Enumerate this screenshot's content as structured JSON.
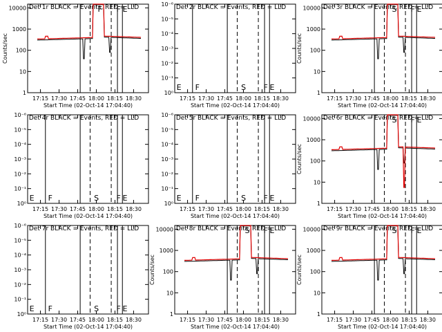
{
  "colors": {
    "events": "#000000",
    "lld": "#e00000",
    "background": "#ffffff"
  },
  "chart_data": [
    {
      "type": "line",
      "title": "Det 1r BLACK = Events, RED = LLD",
      "scale": "count",
      "xlabel": "Start Time (02-Oct-14 17:04:40)",
      "ylabel": "Counts/sec",
      "xticks": [
        "17:15",
        "17:30",
        "17:45",
        "18:00",
        "18:15",
        "18:30"
      ],
      "yticks": [
        "1",
        "10",
        "100",
        "1000",
        "10000"
      ],
      "ylim": [
        1,
        15000
      ],
      "flags": [
        {
          "label": "F",
          "t": "18:00"
        },
        {
          "label": "F",
          "t": "18:15"
        },
        {
          "label": "E",
          "t": "18:20"
        }
      ],
      "series": [
        {
          "name": "Events",
          "color": "#000000"
        },
        {
          "name": "LLD",
          "color": "#e00000"
        }
      ]
    },
    {
      "type": "line",
      "title": "Det 2r BLACK = Events, RED = LLD",
      "scale": "empty",
      "xlabel": "Start Time (02-Oct-14 17:04:40)",
      "ylabel": "",
      "xticks": [
        "17:15",
        "17:30",
        "17:45",
        "18:00",
        "18:15",
        "18:30"
      ],
      "yticks": [
        "10⁰",
        "10⁻¹",
        "10⁻²",
        "10⁻³",
        "10⁻⁴",
        "10⁻⁵",
        "10⁻⁶"
      ],
      "flags": [
        {
          "label": "E",
          "t": "17:05"
        },
        {
          "label": "F",
          "t": "17:20"
        },
        {
          "label": "S",
          "t": "17:57"
        },
        {
          "label": "F",
          "t": "18:15"
        },
        {
          "label": "E",
          "t": "18:20"
        }
      ],
      "series": []
    },
    {
      "type": "line",
      "title": "Det 3r BLACK = Events, RED = LLD",
      "scale": "count",
      "xlabel": "Start Time (02-Oct-14 17:04:40)",
      "ylabel": "Counts/sec",
      "xticks": [
        "17:15",
        "17:30",
        "17:45",
        "18:00",
        "18:15",
        "18:30"
      ],
      "yticks": [
        "1",
        "10",
        "100",
        "1000",
        "10000"
      ],
      "ylim": [
        1,
        15000
      ],
      "flags": [
        {
          "label": "S",
          "t": "18:00"
        },
        {
          "label": "F",
          "t": "18:15"
        },
        {
          "label": "E",
          "t": "18:20"
        }
      ],
      "series": [
        {
          "name": "Events",
          "color": "#000000"
        },
        {
          "name": "LLD",
          "color": "#e00000"
        }
      ]
    },
    {
      "type": "line",
      "title": "Det 4r BLACK = Events, RED = LLD",
      "scale": "empty",
      "xlabel": "Start Time (02-Oct-14 17:04:40)",
      "ylabel": "",
      "xticks": [
        "17:15",
        "17:30",
        "17:45",
        "18:00",
        "18:15",
        "18:30"
      ],
      "yticks": [
        "10⁰",
        "10⁻¹",
        "10⁻²",
        "10⁻³",
        "10⁻⁴",
        "10⁻⁵",
        "10⁻⁶"
      ],
      "flags": [
        {
          "label": "E",
          "t": "17:05"
        },
        {
          "label": "F",
          "t": "17:20"
        },
        {
          "label": "S",
          "t": "17:57"
        },
        {
          "label": "F",
          "t": "18:15"
        },
        {
          "label": "E",
          "t": "18:20"
        }
      ],
      "series": []
    },
    {
      "type": "line",
      "title": "Det 5r BLACK = Events, RED = LLD",
      "scale": "empty",
      "xlabel": "Start Time (02-Oct-14 17:04:40)",
      "ylabel": "",
      "xticks": [
        "17:15",
        "17:30",
        "17:45",
        "18:00",
        "18:15",
        "18:30"
      ],
      "yticks": [
        "10⁰",
        "10⁻¹",
        "10⁻²",
        "10⁻³",
        "10⁻⁴",
        "10⁻⁵",
        "10⁻⁶"
      ],
      "flags": [
        {
          "label": "E",
          "t": "17:05"
        },
        {
          "label": "F",
          "t": "17:20"
        },
        {
          "label": "S",
          "t": "17:57"
        },
        {
          "label": "F",
          "t": "18:15"
        },
        {
          "label": "E",
          "t": "18:20"
        }
      ],
      "series": []
    },
    {
      "type": "line",
      "title": "Det 6r BLACK = Events, RED = LLD",
      "scale": "count",
      "xlabel": "Start Time (02-Oct-14 17:04:40)",
      "ylabel": "Counts/sec",
      "xticks": [
        "17:15",
        "17:30",
        "17:45",
        "18:00",
        "18:15",
        "18:30"
      ],
      "yticks": [
        "1",
        "10",
        "100",
        "1000",
        "10000"
      ],
      "ylim": [
        1,
        15000
      ],
      "flags": [
        {
          "label": "S",
          "t": "18:00"
        },
        {
          "label": "F",
          "t": "18:15"
        },
        {
          "label": "E",
          "t": "18:20"
        }
      ],
      "series": [
        {
          "name": "Events",
          "color": "#000000"
        },
        {
          "name": "LLD",
          "color": "#e00000"
        }
      ]
    },
    {
      "type": "line",
      "title": "Det 7r BLACK = Events, RED = LLD",
      "scale": "empty",
      "xlabel": "Start Time (02-Oct-14 17:04:40)",
      "ylabel": "",
      "xticks": [
        "17:15",
        "17:30",
        "17:45",
        "18:00",
        "18:15",
        "18:30"
      ],
      "yticks": [
        "10⁰",
        "10⁻¹",
        "10⁻²",
        "10⁻³",
        "10⁻⁴",
        "10⁻⁵",
        "10⁻⁶"
      ],
      "flags": [
        {
          "label": "E",
          "t": "17:05"
        },
        {
          "label": "F",
          "t": "17:20"
        },
        {
          "label": "S",
          "t": "17:57"
        },
        {
          "label": "F",
          "t": "18:15"
        },
        {
          "label": "E",
          "t": "18:20"
        }
      ],
      "series": []
    },
    {
      "type": "line",
      "title": "Det 8r BLACK = Events, RED = LLD",
      "scale": "count",
      "xlabel": "Start Time (02-Oct-14 17:04:40)",
      "ylabel": "Counts/sec",
      "xticks": [
        "17:15",
        "17:30",
        "17:45",
        "18:00",
        "18:15",
        "18:30"
      ],
      "yticks": [
        "1",
        "10",
        "100",
        "1000",
        "10000"
      ],
      "ylim": [
        1,
        15000
      ],
      "flags": [
        {
          "label": "S",
          "t": "18:00"
        },
        {
          "label": "F",
          "t": "18:15"
        },
        {
          "label": "E",
          "t": "18:20"
        }
      ],
      "series": [
        {
          "name": "Events",
          "color": "#000000"
        },
        {
          "name": "LLD",
          "color": "#e00000"
        }
      ]
    },
    {
      "type": "line",
      "title": "Det 9r BLACK = Events, RED = LLD",
      "scale": "count",
      "xlabel": "Start Time (02-Oct-14 17:04:40)",
      "ylabel": "Counts/sec",
      "xticks": [
        "17:15",
        "17:30",
        "17:45",
        "18:00",
        "18:15",
        "18:30"
      ],
      "yticks": [
        "1",
        "10",
        "100",
        "1000",
        "10000"
      ],
      "ylim": [
        1,
        15000
      ],
      "flags": [
        {
          "label": "S",
          "t": "18:00"
        },
        {
          "label": "F",
          "t": "18:15"
        },
        {
          "label": "E",
          "t": "18:20"
        }
      ],
      "series": [
        {
          "name": "Events",
          "color": "#000000"
        },
        {
          "name": "LLD",
          "color": "#e00000"
        }
      ]
    }
  ]
}
